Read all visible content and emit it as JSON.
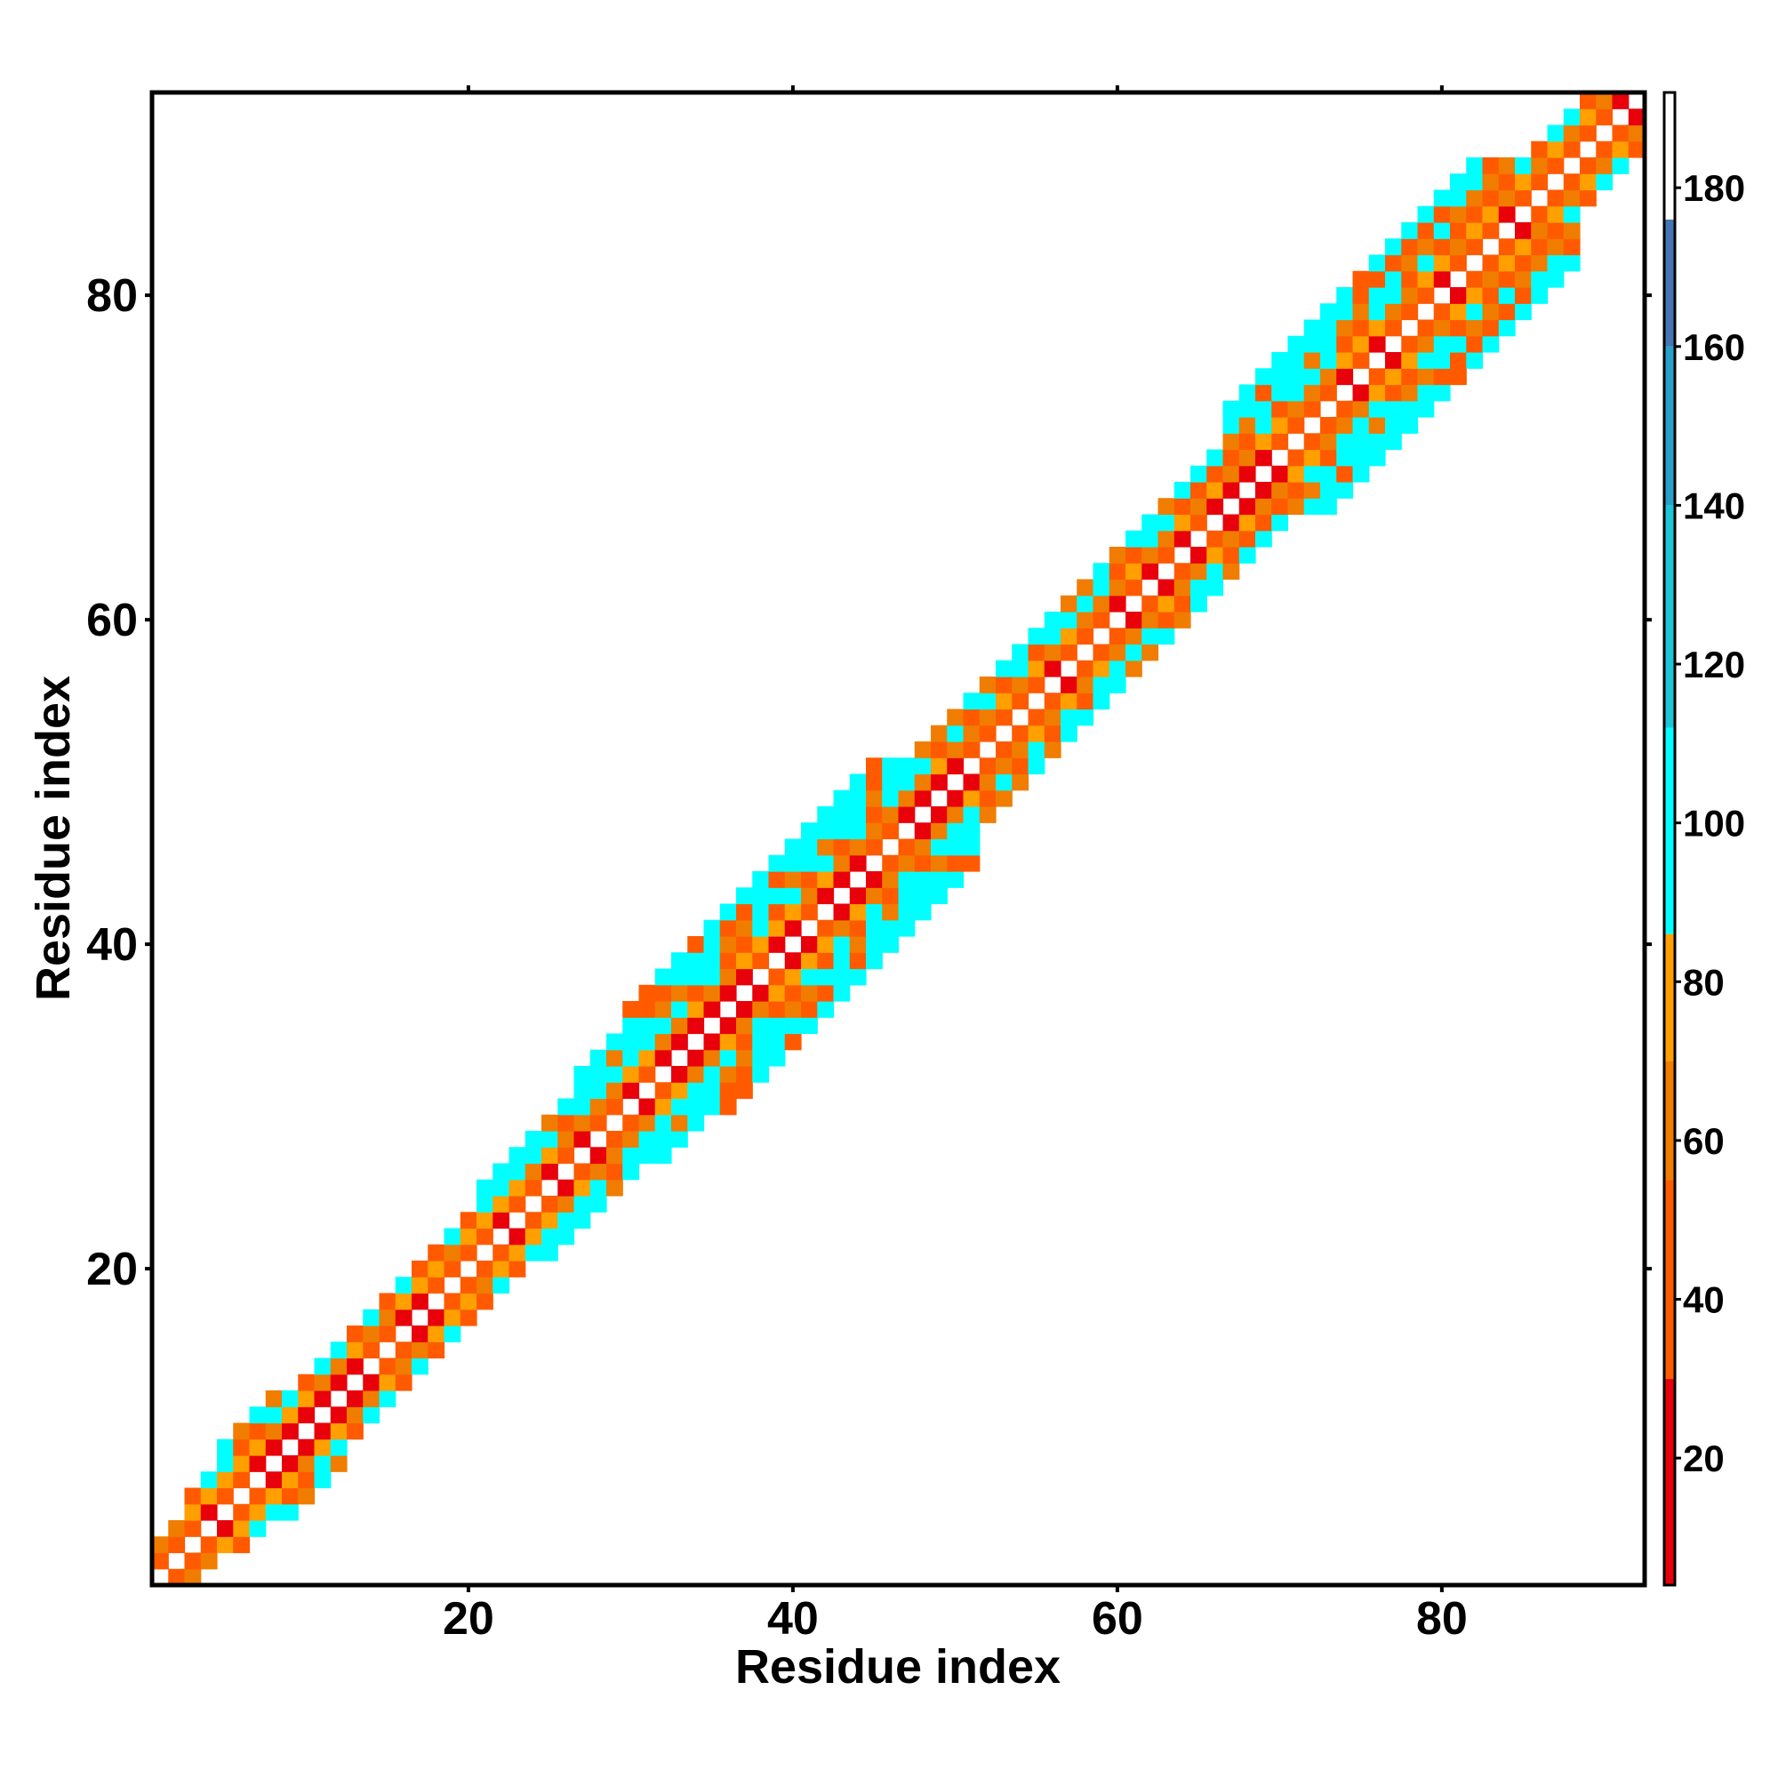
{
  "chart_data": {
    "type": "heatmap",
    "title": "",
    "xlabel": "Residue index",
    "ylabel": "Residue index",
    "xlim": [
      1,
      92
    ],
    "ylim": [
      1,
      92
    ],
    "x_ticks": [
      20,
      40,
      60,
      80
    ],
    "y_ticks": [
      20,
      40,
      60,
      80
    ],
    "grid": false,
    "legend": "colorbar-right",
    "description_of_values": "distance-like matrix values; cells farther than the cutoff are blank (white); diagonal is blank",
    "band_pattern": "values rise with |i-j|: |i-j|=1 ~ 35-45 (red/orange), |i-j|=2 ~ 55-75 (orange/amber), |i-j|>=3 ~ 95-110 (cyan)",
    "band_half_width_by_residue": [
      {
        "from": 1,
        "to": 2,
        "width": 2
      },
      {
        "from": 3,
        "to": 4,
        "width": 3
      },
      {
        "from": 5,
        "to": 8,
        "width": 4
      },
      {
        "from": 9,
        "to": 12,
        "width": 4
      },
      {
        "from": 13,
        "to": 20,
        "width": 3
      },
      {
        "from": 21,
        "to": 26,
        "width": 4
      },
      {
        "from": 27,
        "to": 29,
        "width": 5
      },
      {
        "from": 30,
        "to": 38,
        "width": 6
      },
      {
        "from": 39,
        "to": 51,
        "width": 6
      },
      {
        "from": 52,
        "to": 60,
        "width": 4
      },
      {
        "from": 61,
        "to": 66,
        "width": 4
      },
      {
        "from": 67,
        "to": 77,
        "width": 6
      },
      {
        "from": 78,
        "to": 88,
        "width": 6
      },
      {
        "from": 89,
        "to": 92,
        "width": 3
      }
    ],
    "colorbar": {
      "ticks": [
        20,
        40,
        60,
        80,
        100,
        120,
        140,
        160,
        180
      ],
      "range": [
        4,
        192
      ],
      "segments": [
        {
          "from": 4,
          "to": 30,
          "color": "#e8000b"
        },
        {
          "from": 30,
          "to": 55,
          "color": "#ff5a00"
        },
        {
          "from": 55,
          "to": 70,
          "color": "#f07d00"
        },
        {
          "from": 70,
          "to": 86,
          "color": "#ffa000"
        },
        {
          "from": 86,
          "to": 112,
          "color": "#00ffff"
        },
        {
          "from": 112,
          "to": 140,
          "color": "#1ec4d8"
        },
        {
          "from": 140,
          "to": 160,
          "color": "#2aa0c8"
        },
        {
          "from": 160,
          "to": 176,
          "color": "#4575b4"
        },
        {
          "from": 176,
          "to": 192,
          "color": "#ffffff"
        }
      ]
    }
  }
}
